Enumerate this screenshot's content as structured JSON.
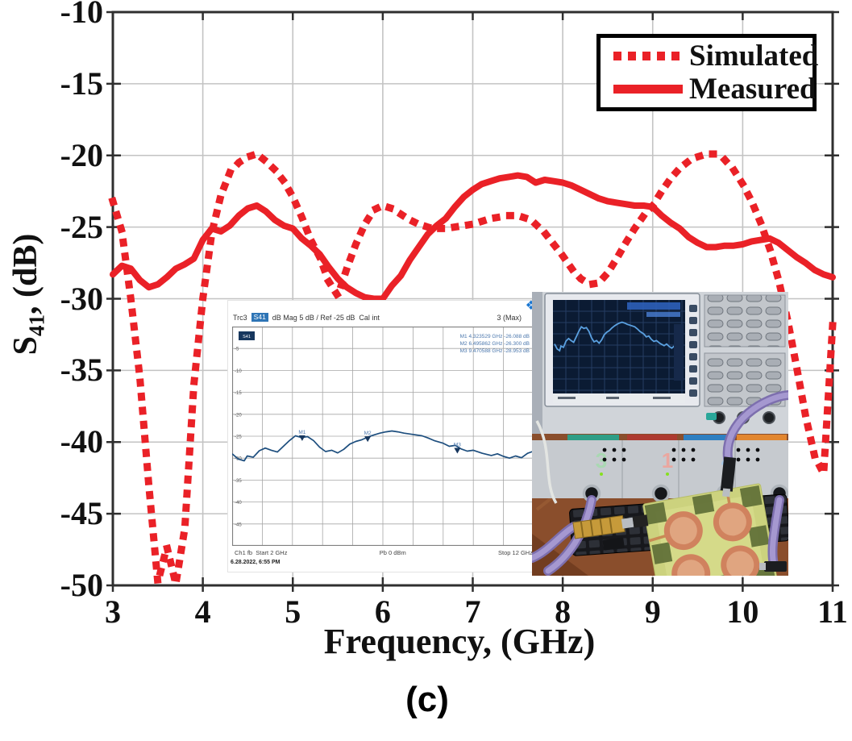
{
  "labels": {
    "y_main": "S",
    "y_sub": "41",
    "y_rest": ", (dB)",
    "x_title": "Frequency, (GHz)",
    "caption": "(c)"
  },
  "legend": {
    "items": [
      {
        "label": "Simulated",
        "style": "dotted"
      },
      {
        "label": "Measured",
        "style": "solid"
      }
    ],
    "border_color": "#000000"
  },
  "colors": {
    "curve_red": "#ea2127",
    "grid": "#c3c3c3",
    "axis": "#2f2f2f",
    "inset_trace": "#1d4e7e",
    "inset_blue_text": "#4b77ad"
  },
  "chart_data": [
    {
      "type": "line",
      "title": "",
      "xlabel": "Frequency, (GHz)",
      "ylabel": "S41, (dB)",
      "xlim": [
        3,
        11
      ],
      "ylim": [
        -50,
        -10
      ],
      "xticks": [
        3,
        4,
        5,
        6,
        7,
        8,
        9,
        10,
        11
      ],
      "yticks": [
        -10,
        -15,
        -20,
        -25,
        -30,
        -35,
        -40,
        -45,
        -50
      ],
      "grid": true,
      "legend_position": "top-right",
      "series": [
        {
          "name": "Simulated",
          "style": "dotted",
          "color": "#ea2127",
          "x_start": 3,
          "x_step": 0.1,
          "y": [
            -23.2,
            -25.3,
            -30.0,
            -35.5,
            -43.0,
            -49.8,
            -47.3,
            -49.9,
            -46.0,
            -36.0,
            -30.0,
            -25.4,
            -22.8,
            -21.2,
            -20.5,
            -20.1,
            -19.9,
            -20.4,
            -21.0,
            -21.8,
            -22.9,
            -24.3,
            -25.9,
            -27.1,
            -28.8,
            -29.8,
            -27.9,
            -26.2,
            -24.8,
            -23.8,
            -23.5,
            -23.7,
            -24.1,
            -24.5,
            -24.8,
            -25.0,
            -25.1,
            -25.1,
            -25.0,
            -24.9,
            -24.8,
            -24.6,
            -24.4,
            -24.3,
            -24.2,
            -24.2,
            -24.4,
            -24.8,
            -25.4,
            -26.2,
            -27.0,
            -27.9,
            -28.6,
            -29.0,
            -28.9,
            -28.2,
            -27.2,
            -26.1,
            -25.1,
            -24.2,
            -23.5,
            -22.5,
            -21.6,
            -20.9,
            -20.4,
            -20.1,
            -19.9,
            -19.9,
            -20.3,
            -21.0,
            -22.0,
            -23.2,
            -24.7,
            -26.5,
            -28.7,
            -31.5,
            -34.8,
            -38.2,
            -41.0,
            -42.2,
            -31.8
          ]
        },
        {
          "name": "Measured",
          "style": "solid",
          "color": "#ea2127",
          "x_start": 3,
          "x_step": 0.1,
          "y": [
            -28.3,
            -27.7,
            -27.9,
            -28.7,
            -29.2,
            -29.0,
            -28.5,
            -27.9,
            -27.6,
            -27.2,
            -25.9,
            -25.1,
            -25.3,
            -24.9,
            -24.2,
            -23.7,
            -23.5,
            -23.9,
            -24.5,
            -24.9,
            -25.1,
            -25.8,
            -26.3,
            -26.9,
            -27.8,
            -28.6,
            -29.2,
            -29.6,
            -29.9,
            -30.0,
            -30.0,
            -29.1,
            -28.4,
            -27.3,
            -26.4,
            -25.5,
            -24.9,
            -24.4,
            -23.6,
            -22.9,
            -22.4,
            -22.0,
            -21.8,
            -21.6,
            -21.5,
            -21.4,
            -21.5,
            -21.9,
            -21.7,
            -21.8,
            -21.9,
            -22.1,
            -22.4,
            -22.7,
            -23.0,
            -23.2,
            -23.3,
            -23.4,
            -23.5,
            -23.5,
            -23.6,
            -24.2,
            -24.7,
            -25.1,
            -25.7,
            -26.1,
            -26.4,
            -26.4,
            -26.3,
            -26.3,
            -26.2,
            -26.0,
            -25.9,
            -25.8,
            -26.1,
            -26.6,
            -27.1,
            -27.5,
            -28.0,
            -28.3,
            -28.5
          ]
        }
      ]
    },
    {
      "type": "line",
      "title": "VNA screenshot inset (Trc3 S41)",
      "xlim": [
        2,
        12
      ],
      "ylim": [
        -50,
        0
      ],
      "yticks": [
        -5,
        -10,
        -15,
        -20,
        -25,
        -30,
        -35,
        -40,
        -45
      ],
      "grid": true,
      "series": [
        {
          "name": "S41",
          "color": "#1d4e7e",
          "x": [
            2.0,
            2.2,
            2.4,
            2.5,
            2.7,
            2.9,
            3.1,
            3.3,
            3.5,
            3.7,
            3.9,
            4.1,
            4.3,
            4.5,
            4.7,
            4.9,
            5.1,
            5.3,
            5.5,
            5.7,
            5.9,
            6.1,
            6.3,
            6.5,
            6.7,
            6.9,
            7.1,
            7.3,
            7.5,
            7.7,
            8.0,
            8.3,
            8.5,
            8.7,
            9.0,
            9.2,
            9.4,
            9.6,
            9.8,
            10.0,
            10.3,
            10.6,
            10.8,
            11.0,
            11.2,
            11.4,
            11.6,
            11.8,
            12.0
          ],
          "y": [
            -29.0,
            -30.2,
            -30.6,
            -29.5,
            -29.8,
            -28.3,
            -27.7,
            -28.2,
            -28.6,
            -27.3,
            -26.0,
            -24.9,
            -25.3,
            -25.1,
            -26.0,
            -27.5,
            -28.5,
            -28.2,
            -28.8,
            -28.0,
            -26.8,
            -26.2,
            -25.8,
            -25.2,
            -24.7,
            -24.3,
            -24.0,
            -23.8,
            -24.0,
            -24.3,
            -24.6,
            -24.9,
            -25.4,
            -26.0,
            -26.6,
            -27.3,
            -27.1,
            -27.9,
            -28.4,
            -28.2,
            -28.9,
            -29.4,
            -29.0,
            -29.6,
            -30.0,
            -29.5,
            -29.9,
            -28.9,
            -28.4
          ]
        }
      ],
      "markers": [
        {
          "label": "M1",
          "x": 4.323529,
          "y": -26.088
        },
        {
          "label": "M2",
          "x": 6.495862,
          "y": -26.3
        },
        {
          "label": "M3",
          "x": 9.470588,
          "y": -28.953
        }
      ]
    }
  ],
  "vna_inset": {
    "trace_label": "Trc3",
    "chip": "S41",
    "meas_format": "dB Mag 5 dB / Ref -25 dB",
    "cal": "Cal int",
    "max_label": "3 (Max)",
    "grid_chip": "S41",
    "markers_text": [
      "M1 4.323529 GHz  -26.088 dB",
      "M2 6.495862 GHz  -26.300 dB",
      "M3 9.470588 GHz  -28.953 dB"
    ],
    "ch_label": "Ch1 fb",
    "start": "Start 2 GHz",
    "power": "Pb  0 dBm",
    "stop": "Stop 12 GHz",
    "timestamp": "6.28.2022, 6:55 PM",
    "logo": "rohde-schwarz-logo"
  },
  "photo": {
    "description": "VNA front panel with purple test cables, keyboard and 4-port circular-patch PCB under test",
    "ports": [
      {
        "label": "3",
        "color": "#a9d8b2"
      },
      {
        "label": "1",
        "color": "#eaa7a0"
      },
      {
        "label": "4",
        "color": "#a7c9ea"
      }
    ]
  }
}
